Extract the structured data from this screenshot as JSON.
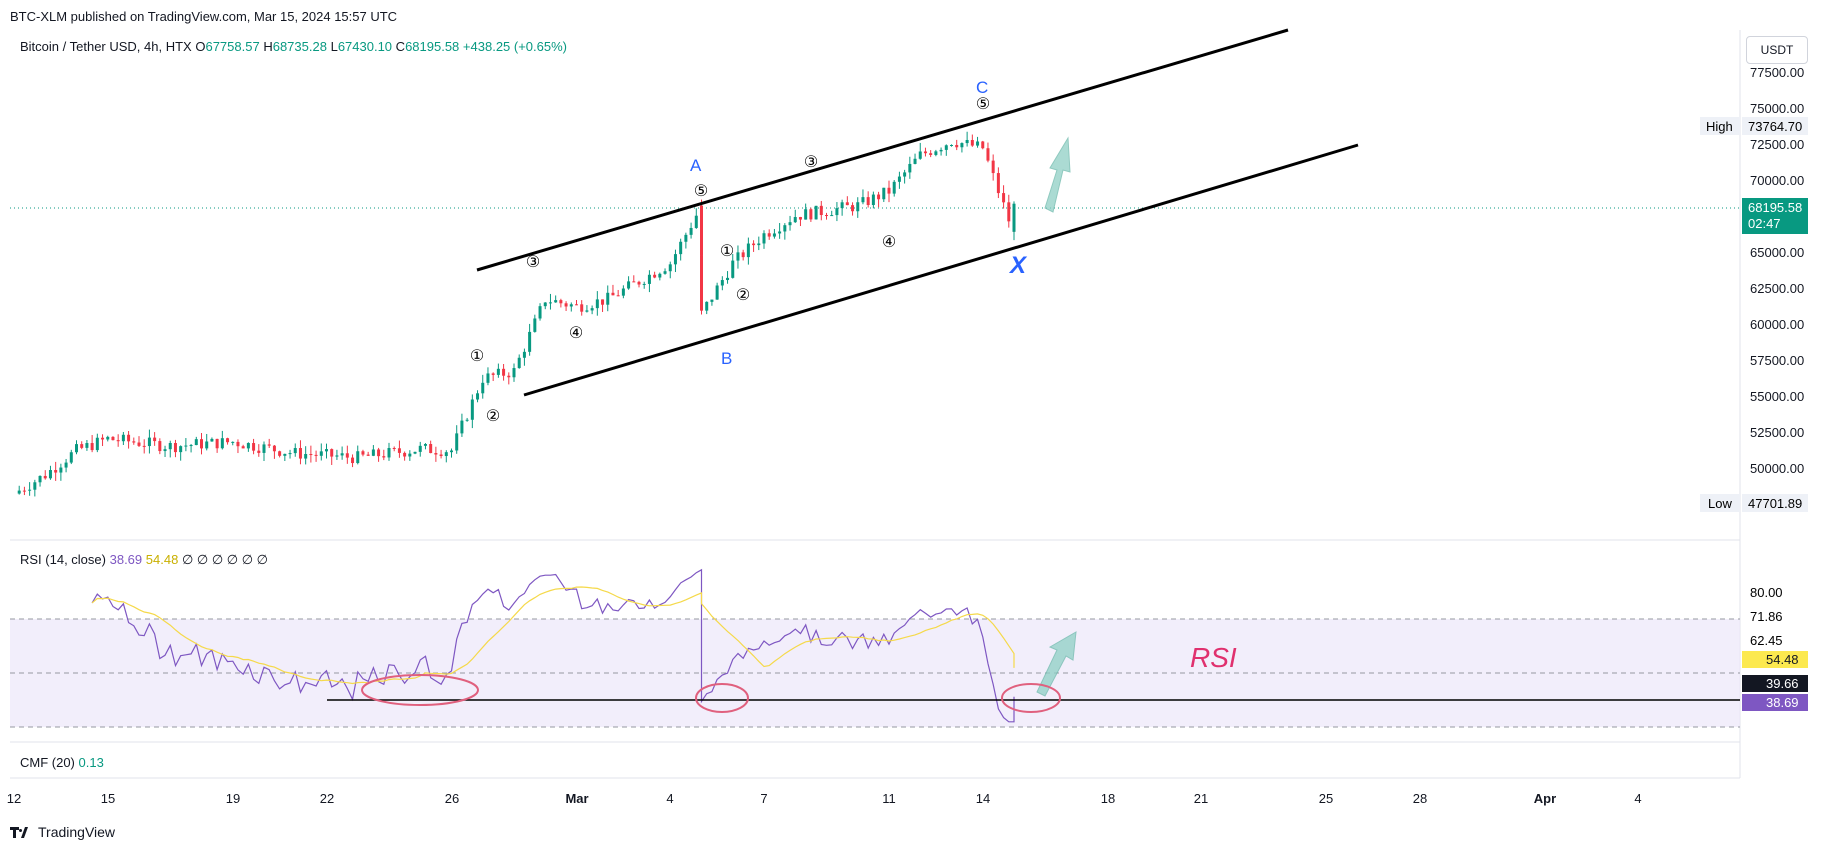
{
  "header": {
    "published_line": "BTC-XLM published on TradingView.com, Mar 15, 2024 15:57 UTC",
    "symbol_line": "Bitcoin / Tether USD, 4h, HTX",
    "ohlc": {
      "o_label": "O",
      "o": "67758.57",
      "h_label": "H",
      "h": "68735.28",
      "l_label": "L",
      "l": "67430.10",
      "c_label": "C",
      "c": "68195.58",
      "change": "+438.25 (+0.65%)"
    },
    "currency": "USDT"
  },
  "price_axis": {
    "ticks": [
      "77500.00",
      "75000.00",
      "72500.00",
      "70000.00",
      "65000.00",
      "62500.00",
      "60000.00",
      "57500.00",
      "55000.00",
      "52500.00",
      "50000.00"
    ],
    "high_label": "High",
    "high_value": "73764.70",
    "low_label": "Low",
    "low_value": "47701.89",
    "last_price": "68195.58",
    "countdown": "02:47"
  },
  "rsi_panel": {
    "legend": "RSI (14, close)",
    "rsi_value": "38.69",
    "ma_value": "54.48",
    "extra": "∅ ∅ ∅ ∅ ∅ ∅",
    "ticks": [
      "80.00",
      "71.86",
      "62.45"
    ],
    "badge_ma": "54.48",
    "badge_line": "39.66",
    "badge_rsi": "38.69",
    "annotation": "RSI"
  },
  "cmf_panel": {
    "legend": "CMF (20)",
    "value": "0.13"
  },
  "time_axis": [
    "12",
    "15",
    "19",
    "22",
    "26",
    "Mar",
    "4",
    "7",
    "11",
    "14",
    "18",
    "21",
    "25",
    "28",
    "Apr",
    "4"
  ],
  "footer": {
    "brand": "TradingView"
  },
  "colors": {
    "up": "#089981",
    "down": "#f23645",
    "rsi": "#7e57c2",
    "rsi_ma": "#f5d94a",
    "wave": "#2962ff",
    "circle": "#e0607e"
  },
  "chart_data": {
    "type": "candlestick",
    "interval": "4h",
    "ylim": [
      46000,
      79000
    ],
    "x_dates": [
      "Feb 12",
      "Feb 15",
      "Feb 19",
      "Feb 22",
      "Feb 26",
      "Mar 1",
      "Mar 4",
      "Mar 7",
      "Mar 11",
      "Mar 14",
      "Mar 18",
      "Mar 21",
      "Mar 25",
      "Mar 28",
      "Apr 1",
      "Apr 4"
    ],
    "price_path": [
      {
        "date": "Feb 12",
        "price": 48500
      },
      {
        "date": "Feb 13",
        "price": 49800
      },
      {
        "date": "Feb 14",
        "price": 51500
      },
      {
        "date": "Feb 15",
        "price": 52300
      },
      {
        "date": "Feb 17",
        "price": 51800
      },
      {
        "date": "Feb 19",
        "price": 52100
      },
      {
        "date": "Feb 21",
        "price": 51300
      },
      {
        "date": "Feb 23",
        "price": 51000
      },
      {
        "date": "Feb 25",
        "price": 51600
      },
      {
        "date": "Feb 26",
        "price": 51500
      },
      {
        "date": "Feb 27",
        "price": 56500
      },
      {
        "date": "Feb 28",
        "price": 57000
      },
      {
        "date": "Feb 29",
        "price": 62000
      },
      {
        "date": "Mar 1",
        "price": 61500
      },
      {
        "date": "Mar 2",
        "price": 62000
      },
      {
        "date": "Mar 4",
        "price": 64500
      },
      {
        "date": "Mar 5",
        "price": 68500
      },
      {
        "date": "Mar 5",
        "price": 61000
      },
      {
        "date": "Mar 6",
        "price": 64500
      },
      {
        "date": "Mar 7",
        "price": 66500
      },
      {
        "date": "Mar 8",
        "price": 67800
      },
      {
        "date": "Mar 10",
        "price": 68500
      },
      {
        "date": "Mar 11",
        "price": 69500
      },
      {
        "date": "Mar 12",
        "price": 72000
      },
      {
        "date": "Mar 13",
        "price": 73000
      },
      {
        "date": "Mar 14",
        "price": 72500
      },
      {
        "date": "Mar 15",
        "price": 66500
      },
      {
        "date": "Mar 15",
        "price": 68195.58
      }
    ],
    "rsi_ylim": [
      20,
      100
    ],
    "rsi_ticks": [
      80,
      71.86,
      62.45
    ],
    "channel_lines": [
      {
        "from": {
          "date": "Feb 27",
          "price": 63800
        },
        "to": {
          "date": "Mar 17",
          "price": 77500
        }
      },
      {
        "from": {
          "date": "Feb 28",
          "price": 55300
        },
        "to": {
          "date": "Mar 26",
          "price": 72500
        }
      }
    ],
    "wave_labels": [
      "A",
      "B",
      "C",
      "X"
    ],
    "count_labels": [
      "③",
      "①",
      "②",
      "④",
      "⑤",
      "①",
      "②",
      "③",
      "④",
      "⑤"
    ]
  }
}
